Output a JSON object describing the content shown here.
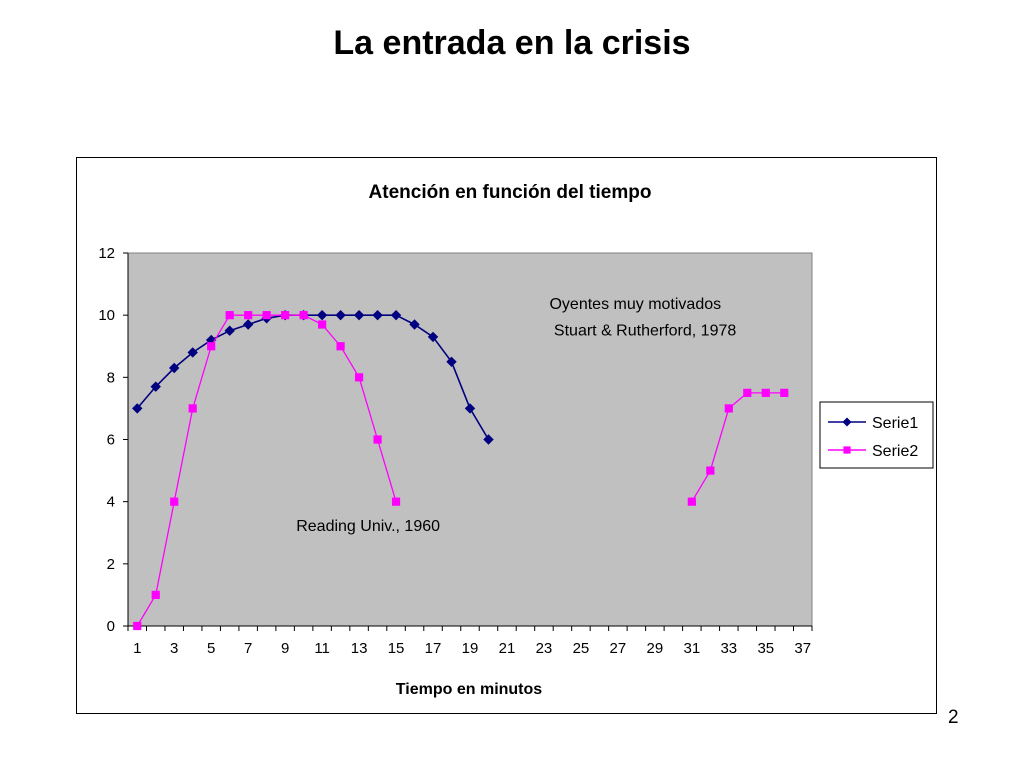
{
  "slide": {
    "title": "La entrada en la crisis",
    "page_number": "2"
  },
  "chart_data": {
    "type": "line",
    "title": "Atención en función del tiempo",
    "xlabel": "Tiempo en minutos",
    "ylabel": "",
    "x": [
      1,
      2,
      3,
      4,
      5,
      6,
      7,
      8,
      9,
      10,
      11,
      12,
      13,
      14,
      15,
      16,
      17,
      18,
      19,
      20,
      21,
      22,
      23,
      24,
      25,
      26,
      27,
      28,
      29,
      30,
      31,
      32,
      33,
      34,
      35,
      36,
      37
    ],
    "xlim": [
      1,
      37
    ],
    "ylim": [
      0,
      12
    ],
    "x_tick_labels": [
      "1",
      "3",
      "5",
      "7",
      "9",
      "11",
      "13",
      "15",
      "17",
      "19",
      "21",
      "23",
      "25",
      "27",
      "29",
      "31",
      "33",
      "35",
      "37"
    ],
    "y_tick_labels": [
      "0",
      "2",
      "4",
      "6",
      "8",
      "10",
      "12"
    ],
    "grid": false,
    "plot_background": "#C0C0C0",
    "legend_position": "right",
    "series": [
      {
        "name": "Serie1",
        "color": "#000080",
        "marker": "diamond",
        "values": [
          7,
          7.7,
          8.3,
          8.8,
          9.2,
          9.5,
          9.7,
          9.9,
          10,
          10,
          10,
          10,
          10,
          10,
          10,
          9.7,
          9.3,
          8.5,
          7,
          6,
          null,
          null,
          null,
          null,
          null,
          null,
          null,
          null,
          null,
          null,
          null,
          null,
          null,
          null,
          null,
          null,
          null
        ]
      },
      {
        "name": "Serie2",
        "color": "#FF00FF",
        "marker": "square",
        "values": [
          0,
          1,
          4,
          7,
          9,
          10,
          10,
          10,
          10,
          10,
          9.7,
          9,
          8,
          6,
          4,
          null,
          null,
          null,
          null,
          null,
          null,
          null,
          null,
          null,
          null,
          null,
          null,
          null,
          null,
          null,
          4,
          5,
          7,
          7.5,
          7.5,
          7.5,
          null
        ]
      }
    ],
    "annotations": [
      {
        "text": "Oyentes muy motivados",
        "x": 23.3,
        "y": 10.2
      },
      {
        "text": " Stuart & Rutherford, 1978",
        "x": 23.3,
        "y": 9.35
      },
      {
        "text": "Reading Univ., 1960",
        "x": 9.6,
        "y": 3.05
      }
    ]
  }
}
